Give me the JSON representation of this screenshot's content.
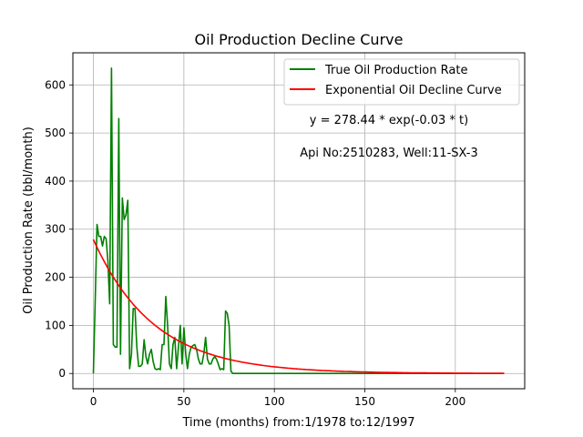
{
  "chart_data": {
    "type": "line",
    "title": "Oil Production Decline Curve",
    "xlabel": "Time (months) from:1/1978 to:12/1997",
    "ylabel": "Oil Production Rate (bbl/month)",
    "xlim": [
      -11.35,
      238.35
    ],
    "ylim": [
      -31.75,
      666.75
    ],
    "xticks": [
      0,
      50,
      100,
      150,
      200
    ],
    "yticks": [
      0,
      100,
      200,
      300,
      400,
      500,
      600
    ],
    "grid": true,
    "legend_position": "top-right",
    "series": [
      {
        "name": "True Oil Production Rate",
        "color": "#008000",
        "x": [
          0,
          1,
          2,
          3,
          4,
          5,
          6,
          7,
          8,
          9,
          10,
          11,
          12,
          13,
          14,
          15,
          16,
          17,
          18,
          19,
          20,
          21,
          22,
          23,
          24,
          25,
          26,
          27,
          28,
          29,
          30,
          31,
          32,
          33,
          34,
          35,
          36,
          37,
          38,
          39,
          40,
          41,
          42,
          43,
          44,
          45,
          46,
          47,
          48,
          49,
          50,
          51,
          52,
          53,
          54,
          55,
          56,
          57,
          58,
          59,
          60,
          61,
          62,
          63,
          64,
          65,
          66,
          67,
          68,
          69,
          70,
          71,
          72,
          73,
          74,
          75,
          76,
          77,
          78,
          79,
          80,
          81,
          82,
          227
        ],
        "y": [
          0,
          150,
          310,
          285,
          285,
          265,
          285,
          280,
          235,
          145,
          635,
          60,
          55,
          55,
          530,
          40,
          365,
          320,
          330,
          360,
          10,
          40,
          135,
          135,
          55,
          15,
          15,
          20,
          70,
          35,
          20,
          40,
          50,
          25,
          10,
          8,
          10,
          8,
          60,
          60,
          160,
          100,
          20,
          10,
          60,
          75,
          10,
          55,
          100,
          20,
          95,
          40,
          10,
          40,
          55,
          58,
          60,
          50,
          30,
          20,
          20,
          40,
          75,
          30,
          20,
          20,
          30,
          35,
          30,
          20,
          8,
          10,
          8,
          130,
          125,
          100,
          5,
          0,
          0,
          0,
          0,
          0,
          0,
          0
        ]
      },
      {
        "name": "Exponential Oil Decline Curve",
        "color": "#ff0000",
        "equation": {
          "a": 278.44,
          "b": -0.03
        },
        "x_range": [
          0,
          227
        ]
      }
    ],
    "annotations": [
      {
        "text": "y = 278.44 * exp(-0.03 * t)"
      },
      {
        "text": "Api No:2510283, Well:11-SX-3"
      }
    ]
  }
}
